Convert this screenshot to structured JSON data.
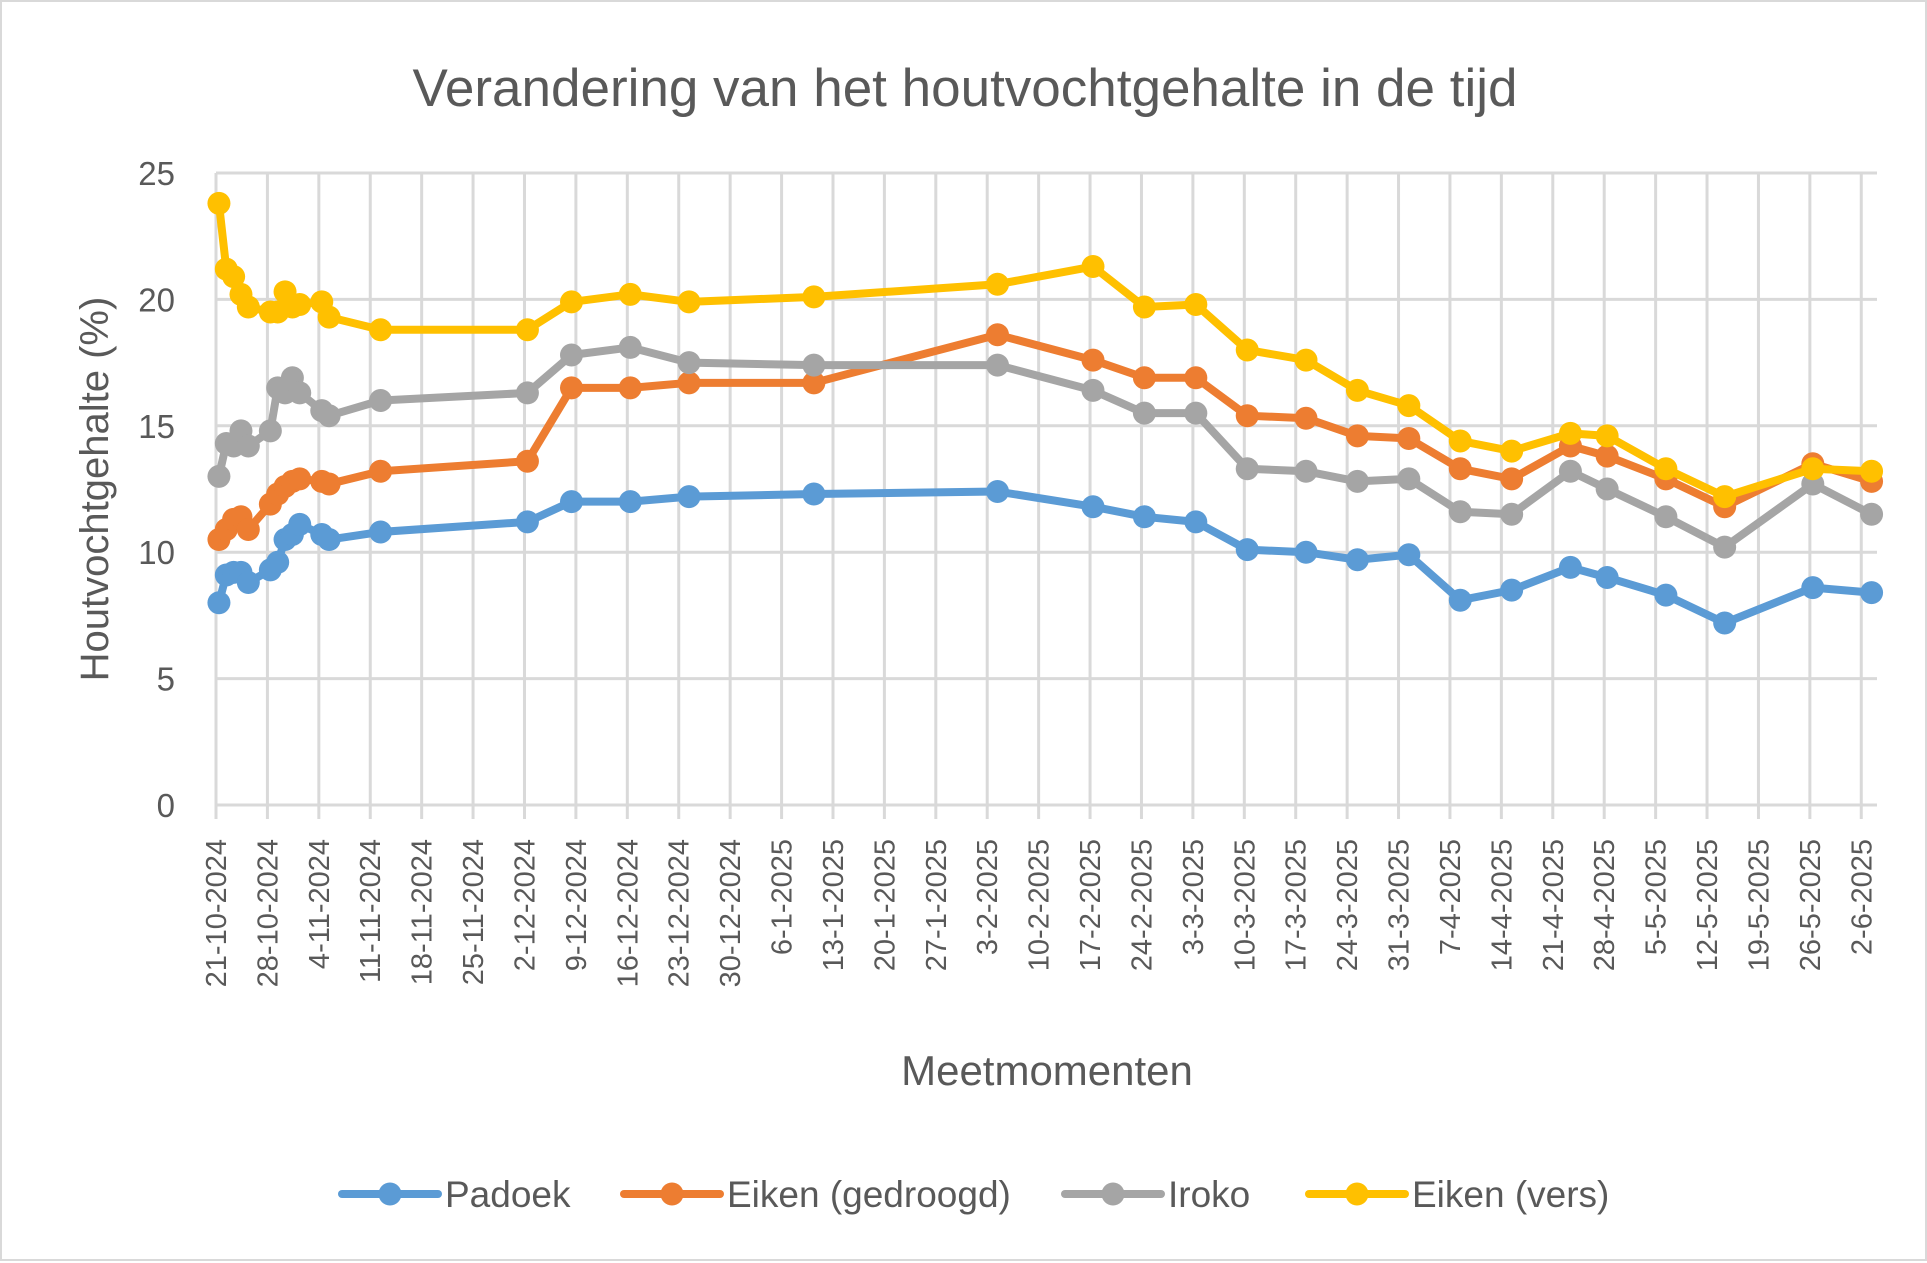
{
  "chart_data": {
    "type": "line",
    "title": "Verandering van het houtvochtgehalte in de tijd",
    "xlabel": "Meetmomenten",
    "ylabel": "Houtvochtgehalte (%)",
    "ylim": [
      0,
      25
    ],
    "yticks": [
      0,
      5,
      10,
      15,
      20,
      25
    ],
    "ytick_labels": [
      "0",
      "5",
      "10",
      "15",
      "20",
      "25"
    ],
    "xlim": [
      "21-10-2024",
      "4-6-2025"
    ],
    "xtick_labels": [
      "21-10-2024",
      "28-10-2024",
      "4-11-2024",
      "11-11-2024",
      "18-11-2024",
      "25-11-2024",
      "2-12-2024",
      "9-12-2024",
      "16-12-2024",
      "23-12-2024",
      "30-12-2024",
      "6-1-2025",
      "13-1-2025",
      "20-1-2025",
      "27-1-2025",
      "3-2-2025",
      "10-2-2025",
      "17-2-2025",
      "24-2-2025",
      "3-3-2025",
      "10-3-2025",
      "17-3-2025",
      "24-3-2025",
      "31-3-2025",
      "7-4-2025",
      "14-4-2025",
      "21-4-2025",
      "28-4-2025",
      "5-5-2025",
      "12-5-2025",
      "19-5-2025",
      "26-5-2025",
      "2-6-2025"
    ],
    "grid": true,
    "legend_position": "bottom",
    "x": [
      "21-10-2024",
      "22-10-2024",
      "23-10-2024",
      "24-10-2024",
      "25-10-2024",
      "28-10-2024",
      "29-10-2024",
      "30-10-2024",
      "31-10-2024",
      "1-11-2024",
      "4-11-2024",
      "5-11-2024",
      "12-11-2024",
      "2-12-2024",
      "8-12-2024",
      "16-12-2024",
      "24-12-2024",
      "10-1-2025",
      "4-2-2025",
      "17-2-2025",
      "24-2-2025",
      "3-3-2025",
      "10-3-2025",
      "18-3-2025",
      "25-3-2025",
      "1-4-2025",
      "8-4-2025",
      "15-4-2025",
      "23-4-2025",
      "28-4-2025",
      "6-5-2025",
      "14-5-2025",
      "26-5-2025",
      "3-6-2025"
    ],
    "series": [
      {
        "name": "Padoek",
        "color": "#5b9bd5",
        "values": [
          8.0,
          9.1,
          9.2,
          9.2,
          8.8,
          9.3,
          9.6,
          10.5,
          10.7,
          11.1,
          10.7,
          10.5,
          10.8,
          11.2,
          12.0,
          12.0,
          12.2,
          12.3,
          12.4,
          11.8,
          11.4,
          11.2,
          10.1,
          10.0,
          9.7,
          9.9,
          8.1,
          8.5,
          9.4,
          9.0,
          8.3,
          7.2,
          8.6,
          8.4
        ]
      },
      {
        "name": "Eiken (gedroogd)",
        "color": "#ed7d31",
        "values": [
          10.5,
          10.9,
          11.3,
          11.4,
          10.9,
          11.9,
          12.3,
          12.6,
          12.8,
          12.9,
          12.8,
          12.7,
          13.2,
          13.6,
          16.5,
          16.5,
          16.7,
          16.7,
          18.6,
          17.6,
          16.9,
          16.9,
          15.4,
          15.3,
          14.6,
          14.5,
          13.3,
          12.9,
          14.2,
          13.8,
          12.9,
          11.8,
          13.5,
          12.8
        ]
      },
      {
        "name": "Iroko",
        "color": "#a5a5a5",
        "values": [
          13.0,
          14.3,
          14.2,
          14.8,
          14.2,
          14.8,
          16.5,
          16.3,
          16.9,
          16.3,
          15.6,
          15.4,
          16.0,
          16.3,
          17.8,
          18.1,
          17.5,
          17.4,
          17.4,
          16.4,
          15.5,
          15.5,
          13.3,
          13.2,
          12.8,
          12.9,
          11.6,
          11.5,
          13.2,
          12.5,
          11.4,
          10.2,
          12.7,
          11.5
        ]
      },
      {
        "name": "Eiken (vers)",
        "color": "#ffc000",
        "values": [
          23.8,
          21.2,
          20.9,
          20.2,
          19.7,
          19.5,
          19.5,
          20.3,
          19.7,
          19.8,
          19.9,
          19.3,
          18.8,
          18.8,
          19.9,
          20.2,
          19.9,
          20.1,
          20.6,
          21.3,
          19.7,
          19.8,
          18.0,
          17.6,
          16.4,
          15.8,
          14.4,
          14.0,
          14.7,
          14.6,
          13.3,
          12.2,
          13.3,
          13.2
        ]
      }
    ]
  },
  "colors": {
    "gridline": "#d9d9d9",
    "text": "#595959",
    "border": "#d9d9d9"
  }
}
